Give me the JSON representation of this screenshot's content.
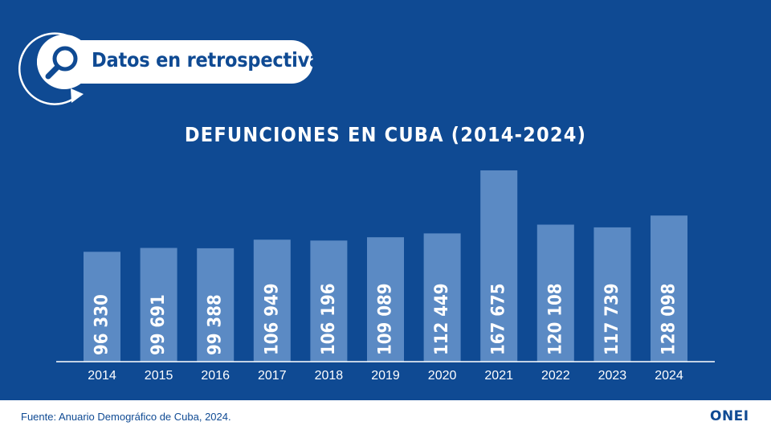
{
  "header": {
    "title": "Datos en retrospectiva",
    "icon": "search-magnifier-icon"
  },
  "footer": {
    "source": "Fuente: Anuario Demográfico de Cuba, 2024.",
    "logo_text": "ONEI"
  },
  "colors": {
    "background": "#0f4a93",
    "bar": "#5b8ac4",
    "axis": "#ffffff",
    "label_dark": "#0f4a93"
  },
  "chart_data": {
    "type": "bar",
    "title": "DEFUNCIONES EN CUBA (2014-2024)",
    "categories": [
      "2014",
      "2015",
      "2016",
      "2017",
      "2018",
      "2019",
      "2020",
      "2021",
      "2022",
      "2023",
      "2024"
    ],
    "values": [
      96330,
      99691,
      99388,
      106949,
      106196,
      109089,
      112449,
      167675,
      120108,
      117739,
      128098
    ],
    "value_labels": [
      "96 330",
      "99 691",
      "99 388",
      "106 949",
      "106 196",
      "109 089",
      "112 449",
      "167 675",
      "120 108",
      "117 739",
      "128 098"
    ],
    "xlabel": "",
    "ylabel": "",
    "grid": false,
    "legend": "none"
  }
}
